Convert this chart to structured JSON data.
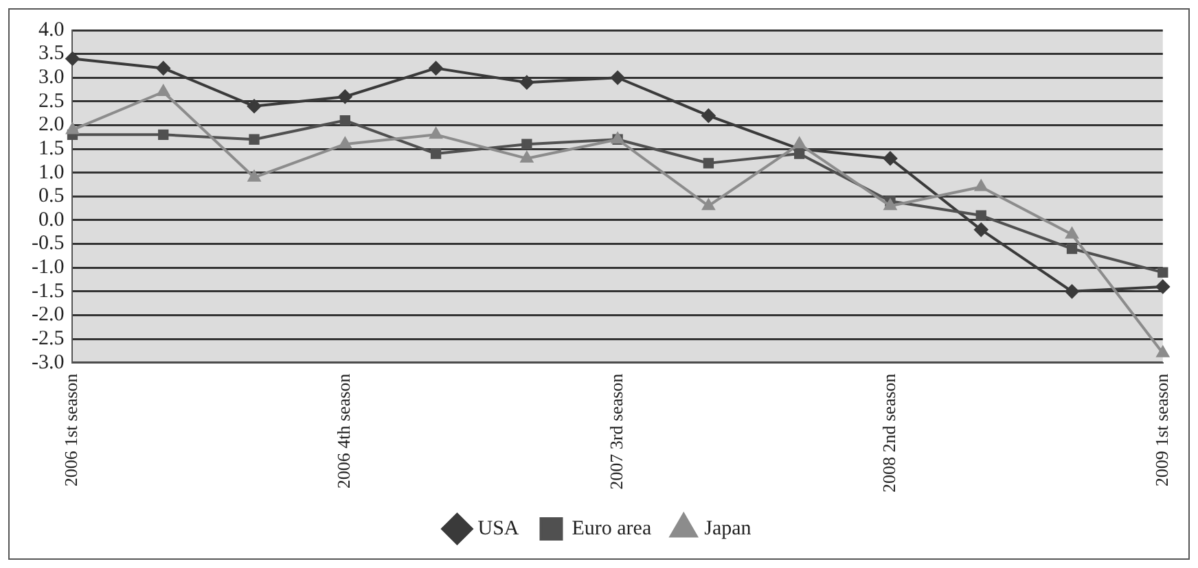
{
  "chart_data": {
    "type": "line",
    "categories": [
      "2006 1st season",
      null,
      null,
      "2006 4th season",
      null,
      null,
      "2007 3rd season",
      null,
      null,
      "2008 2nd season",
      null,
      null,
      "2009 1st season"
    ],
    "series": [
      {
        "name": "USA",
        "color": "#3a3a3a",
        "marker": "diamond",
        "values": [
          3.4,
          3.2,
          2.4,
          2.6,
          3.2,
          2.9,
          3.0,
          2.2,
          1.5,
          1.3,
          -0.2,
          -1.5,
          -1.4
        ]
      },
      {
        "name": "Euro area",
        "color": "#505050",
        "marker": "square",
        "values": [
          1.8,
          1.8,
          1.7,
          2.1,
          1.4,
          1.6,
          1.7,
          1.2,
          1.4,
          0.4,
          0.1,
          -0.6,
          -1.1
        ]
      },
      {
        "name": "Japan",
        "color": "#8c8c8c",
        "marker": "triangle",
        "values": [
          1.9,
          2.7,
          0.9,
          1.6,
          1.8,
          1.3,
          1.7,
          0.3,
          1.6,
          0.3,
          0.7,
          -0.3,
          -2.8
        ]
      }
    ],
    "ylim": [
      -3.0,
      4.0
    ],
    "yticks": [
      {
        "value": -3,
        "label": "-3.0"
      },
      {
        "value": -2.5,
        "label": "-2.5"
      },
      {
        "value": -2,
        "label": "-2.0"
      },
      {
        "value": -1.5,
        "label": "-1.5"
      },
      {
        "value": -1,
        "label": "-1.0"
      },
      {
        "value": -0.5,
        "label": "-0.5"
      },
      {
        "value": 0,
        "label": "0.0"
      },
      {
        "value": 0.5,
        "label": "0.5"
      },
      {
        "value": 1,
        "label": "1.0"
      },
      {
        "value": 1.5,
        "label": "1.5"
      },
      {
        "value": 2,
        "label": "2.0"
      },
      {
        "value": 2.5,
        "label": "2.5"
      },
      {
        "value": 3,
        "label": "3.0"
      },
      {
        "value": 3.5,
        "label": "3.5"
      },
      {
        "value": 4,
        "label": "4.0"
      }
    ],
    "grid": "y",
    "legend": "bottom"
  }
}
